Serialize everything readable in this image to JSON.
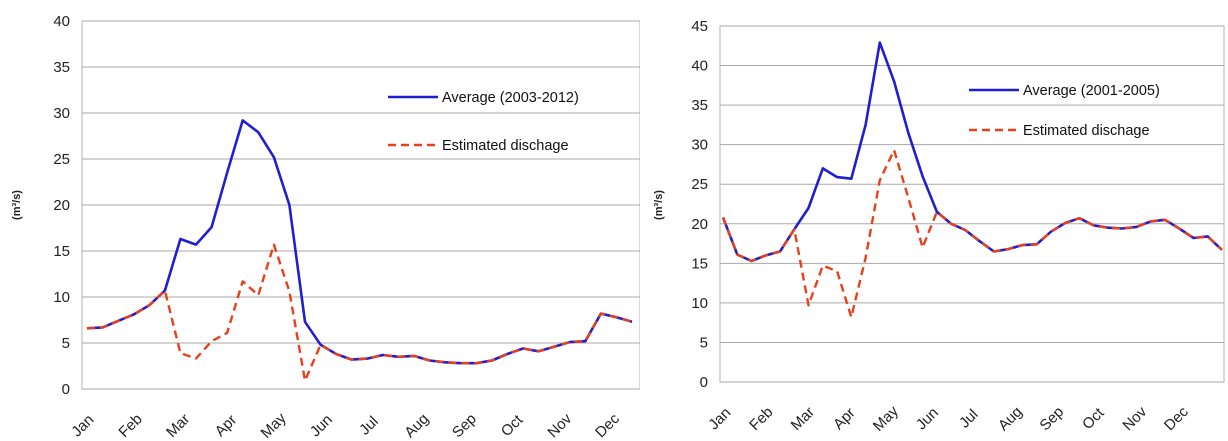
{
  "chart_data": [
    {
      "type": "line",
      "ylabel": "(m³/s)",
      "ylim": [
        0,
        40
      ],
      "yticks": [
        "0",
        "5",
        "10",
        "15",
        "20",
        "25",
        "30",
        "35",
        "40"
      ],
      "grid": true,
      "legend": "top-right",
      "months": [
        "Jan",
        "Feb",
        "Mar",
        "Apr",
        "May",
        "Jun",
        "Jul",
        "Aug",
        "Sep",
        "Oct",
        "Nov",
        "Dec"
      ],
      "series": [
        {
          "name": "Average (2003-2012)",
          "color": "#1f1fd1",
          "style": "solid",
          "values": [
            6.6,
            6.7,
            7.4,
            8.1,
            9.1,
            10.7,
            16.3,
            15.7,
            17.6,
            23.5,
            29.2,
            27.9,
            25.2,
            20.0,
            7.3,
            4.8,
            3.8,
            3.2,
            3.3,
            3.7,
            3.5,
            3.6,
            3.1,
            2.9,
            2.8,
            2.8,
            3.1,
            3.8,
            4.4,
            4.1,
            4.6,
            5.1,
            5.2,
            8.2,
            7.8,
            7.3
          ]
        },
        {
          "name": "Estimated dischage",
          "color": "#e8401a",
          "style": "dashed",
          "values": [
            6.6,
            6.7,
            7.4,
            8.1,
            9.1,
            10.7,
            3.9,
            3.3,
            5.2,
            6.1,
            11.7,
            10.2,
            15.7,
            10.6,
            0.9,
            4.8,
            3.8,
            3.2,
            3.3,
            3.7,
            3.5,
            3.6,
            3.1,
            2.9,
            2.8,
            2.8,
            3.1,
            3.8,
            4.4,
            4.1,
            4.6,
            5.1,
            5.2,
            8.2,
            7.8,
            7.3
          ]
        }
      ]
    },
    {
      "type": "line",
      "ylabel": "(m³/s)",
      "ylim": [
        0,
        45
      ],
      "yticks": [
        "0",
        "5",
        "10",
        "15",
        "20",
        "25",
        "30",
        "35",
        "40",
        "45"
      ],
      "grid": true,
      "legend": "top-right",
      "months": [
        "Jan",
        "Feb",
        "Mar",
        "Apr",
        "May",
        "Jun",
        "Jul",
        "Aug",
        "Sep",
        "Oct",
        "Nov",
        "Dec"
      ],
      "series": [
        {
          "name": "Average (2001-2005)",
          "color": "#1f1fd1",
          "style": "solid",
          "values": [
            20.8,
            16.1,
            15.3,
            16.0,
            16.5,
            19.3,
            22.0,
            27.0,
            25.9,
            25.7,
            32.5,
            42.9,
            38.0,
            31.5,
            26.0,
            21.5,
            20.0,
            19.2,
            17.8,
            16.5,
            16.8,
            17.3,
            17.4,
            19.0,
            20.1,
            20.7,
            19.8,
            19.5,
            19.4,
            19.6,
            20.3,
            20.5,
            19.4,
            18.2,
            18.4,
            16.7
          ]
        },
        {
          "name": "Estimated dischage",
          "color": "#e8401a",
          "style": "dashed",
          "values": [
            20.8,
            16.1,
            15.3,
            16.0,
            16.5,
            19.3,
            9.7,
            14.7,
            14.0,
            8.2,
            15.7,
            25.5,
            29.3,
            23.3,
            17.0,
            21.5,
            20.0,
            19.2,
            17.8,
            16.5,
            16.8,
            17.3,
            17.4,
            19.0,
            20.1,
            20.7,
            19.8,
            19.5,
            19.4,
            19.6,
            20.3,
            20.5,
            19.4,
            18.2,
            18.4,
            16.7
          ]
        }
      ]
    }
  ]
}
